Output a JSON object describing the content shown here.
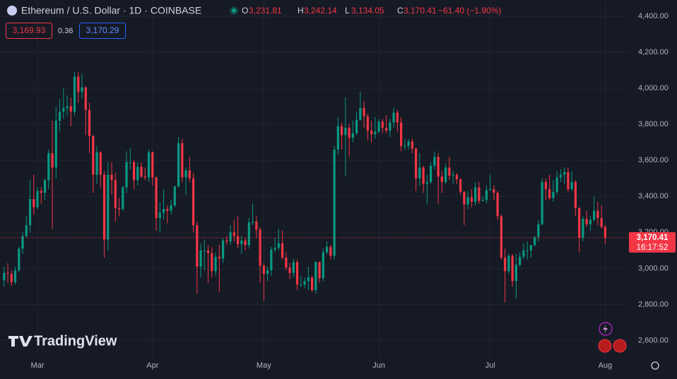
{
  "header": {
    "title": "Ethereum / U.S. Dollar · 1D · COINBASE",
    "o_label": "O",
    "open": "3,231.81",
    "h_label": "H",
    "high": "3,242.14",
    "l_label": "L",
    "low": "3,134.05",
    "c_label": "C",
    "close": "3,170.41",
    "change": "−61.40 (−1.90%)",
    "bid": "3,169.93",
    "spread": "0.36",
    "ask": "3,170.29",
    "countdown": "16:17:52",
    "brand": "TradingView"
  },
  "chart_data": {
    "type": "candlestick",
    "up_color": "#089981",
    "down_color": "#f23645",
    "grid": true,
    "open": [
      2935,
      2975,
      2970,
      2925,
      2990,
      3110,
      3180,
      3240,
      3385,
      3340,
      3430,
      3420,
      3490,
      3640,
      3560,
      3820,
      3870,
      3890,
      3900,
      3870,
      4065,
      3980,
      4005,
      3880,
      3735,
      3520,
      3645,
      3520,
      3160,
      3520,
      3490,
      3335,
      3330,
      3450,
      3590,
      3590,
      3490,
      3565,
      3510,
      3505,
      3645,
      3505,
      3280,
      3310,
      3330,
      3320,
      3350,
      3455,
      3695,
      3505,
      3545,
      3500,
      3240,
      3010,
      3100,
      3100,
      3085,
      2985,
      3065,
      3055,
      3155,
      3150,
      3200,
      3180,
      3135,
      3155,
      3130,
      3255,
      3260,
      3215,
      3015,
      2970,
      2990,
      3105,
      3115,
      3140,
      3060,
      3005,
      2975,
      3035,
      2910,
      2910,
      2930,
      2950,
      2880,
      3035,
      2945,
      3090,
      3120,
      3070,
      3660,
      3790,
      3740,
      3780,
      3725,
      3750,
      3825,
      3890,
      3845,
      3765,
      3745,
      3760,
      3815,
      3780,
      3765,
      3810,
      3865,
      3810,
      3680,
      3680,
      3705,
      3665,
      3500,
      3560,
      3470,
      3480,
      3570,
      3620,
      3510,
      3480,
      3560,
      3515,
      3520,
      3495,
      3425,
      3355,
      3395,
      3370,
      3450,
      3375,
      3380,
      3435,
      3440,
      3420,
      3290,
      3060,
      2985,
      3070,
      2930,
      3020,
      3065,
      3100,
      3100,
      3130,
      3175,
      3245,
      3480,
      3440,
      3390,
      3425,
      3505,
      3520,
      3535,
      3440,
      3480,
      3335,
      3170,
      3275,
      3245,
      3270,
      3320,
      3280,
      3231.81
    ],
    "high": [
      3010,
      3030,
      2990,
      3010,
      3120,
      3200,
      3290,
      3490,
      3520,
      3450,
      3450,
      3500,
      3660,
      3820,
      3900,
      3940,
      4000,
      3960,
      3950,
      4090,
      4090,
      4080,
      4010,
      3920,
      3740,
      3680,
      3650,
      3540,
      3590,
      3590,
      3530,
      3390,
      3460,
      3650,
      3670,
      3600,
      3590,
      3590,
      3560,
      3660,
      3650,
      3510,
      3370,
      3440,
      3350,
      3380,
      3460,
      3730,
      3720,
      3560,
      3620,
      3530,
      3260,
      3140,
      3160,
      3130,
      3120,
      3090,
      3130,
      3170,
      3180,
      3240,
      3270,
      3290,
      3180,
      3170,
      3280,
      3360,
      3290,
      3230,
      3030,
      3010,
      3120,
      3170,
      3220,
      3210,
      3090,
      3030,
      3055,
      3050,
      2960,
      2950,
      3010,
      2960,
      3040,
      3040,
      3110,
      3150,
      3130,
      3680,
      3840,
      3810,
      3950,
      3800,
      3820,
      3870,
      3980,
      3930,
      3860,
      3820,
      3840,
      3830,
      3830,
      3850,
      3830,
      3890,
      3880,
      3840,
      3720,
      3720,
      3720,
      3670,
      3640,
      3570,
      3520,
      3590,
      3650,
      3640,
      3540,
      3580,
      3620,
      3540,
      3530,
      3500,
      3430,
      3430,
      3440,
      3480,
      3480,
      3400,
      3460,
      3520,
      3460,
      3430,
      3300,
      3110,
      3080,
      3080,
      3080,
      3090,
      3140,
      3150,
      3130,
      3180,
      3270,
      3500,
      3500,
      3520,
      3490,
      3540,
      3550,
      3560,
      3560,
      3540,
      3490,
      3340,
      3290,
      3320,
      3290,
      3400,
      3370,
      3350,
      3242.14
    ],
    "low": [
      2900,
      2920,
      2905,
      2910,
      2980,
      3080,
      3170,
      3200,
      3300,
      3330,
      3360,
      3380,
      3440,
      3220,
      3500,
      3760,
      3830,
      3850,
      3790,
      3850,
      3920,
      3940,
      3740,
      3640,
      3420,
      3470,
      3450,
      3060,
      3100,
      3410,
      3260,
      3290,
      3320,
      3420,
      3550,
      3440,
      3460,
      3500,
      3490,
      3480,
      3460,
      3210,
      3200,
      3270,
      3250,
      3300,
      3340,
      3450,
      3480,
      3410,
      3480,
      3200,
      2860,
      2950,
      2990,
      2920,
      2950,
      2960,
      2870,
      3030,
      3130,
      3130,
      3150,
      3110,
      3080,
      3100,
      3110,
      3240,
      3170,
      2920,
      2820,
      2930,
      2960,
      3090,
      3100,
      3050,
      2990,
      2940,
      2950,
      2880,
      2900,
      2890,
      2880,
      2870,
      2860,
      2920,
      2930,
      3080,
      3050,
      3050,
      3630,
      3660,
      3510,
      3620,
      3700,
      3740,
      3820,
      3780,
      3710,
      3700,
      3720,
      3750,
      3750,
      3750,
      3730,
      3780,
      3760,
      3650,
      3660,
      3660,
      3640,
      3430,
      3460,
      3420,
      3360,
      3470,
      3550,
      3360,
      3420,
      3470,
      3490,
      3470,
      3470,
      3410,
      3240,
      3330,
      3340,
      3350,
      3360,
      3370,
      3360,
      3430,
      3380,
      3270,
      3050,
      2810,
      2970,
      2900,
      2830,
      3010,
      3050,
      3050,
      3060,
      3120,
      3150,
      3240,
      3380,
      3380,
      3370,
      3410,
      3480,
      3470,
      3420,
      3430,
      3290,
      3090,
      3150,
      3230,
      3210,
      3260,
      3240,
      3220,
      3134.05
    ],
    "close": [
      2975,
      2970,
      2925,
      2990,
      3110,
      3180,
      3240,
      3385,
      3340,
      3430,
      3420,
      3490,
      3640,
      3560,
      3820,
      3870,
      3890,
      3900,
      3870,
      4065,
      3980,
      4005,
      3880,
      3735,
      3520,
      3645,
      3520,
      3160,
      3520,
      3490,
      3335,
      3330,
      3450,
      3590,
      3590,
      3490,
      3565,
      3510,
      3505,
      3645,
      3505,
      3280,
      3310,
      3330,
      3320,
      3350,
      3455,
      3695,
      3505,
      3545,
      3500,
      3240,
      3010,
      3100,
      3100,
      3085,
      2985,
      3065,
      3055,
      3155,
      3150,
      3200,
      3180,
      3135,
      3155,
      3130,
      3255,
      3260,
      3215,
      3015,
      2970,
      2990,
      3105,
      3115,
      3140,
      3060,
      3005,
      2975,
      3035,
      2910,
      2910,
      2930,
      2950,
      2880,
      3035,
      2945,
      3090,
      3120,
      3070,
      3660,
      3790,
      3740,
      3780,
      3725,
      3750,
      3825,
      3890,
      3845,
      3765,
      3745,
      3760,
      3815,
      3780,
      3765,
      3810,
      3865,
      3810,
      3680,
      3680,
      3705,
      3665,
      3500,
      3560,
      3470,
      3480,
      3570,
      3620,
      3510,
      3480,
      3560,
      3515,
      3520,
      3495,
      3425,
      3355,
      3395,
      3370,
      3450,
      3375,
      3380,
      3435,
      3440,
      3420,
      3290,
      3060,
      2985,
      3070,
      2930,
      3020,
      3065,
      3100,
      3100,
      3130,
      3175,
      3245,
      3480,
      3440,
      3390,
      3425,
      3505,
      3520,
      3535,
      3440,
      3480,
      3335,
      3170,
      3275,
      3245,
      3270,
      3320,
      3280,
      3230,
      3170.41
    ],
    "xlim": [
      -1.1,
      168.4
    ],
    "xticks": [
      {
        "value": 9,
        "label": "Mar"
      },
      {
        "value": 40,
        "label": "Apr"
      },
      {
        "value": 70,
        "label": "May"
      },
      {
        "value": 101,
        "label": "Jun"
      },
      {
        "value": 131,
        "label": "Jul"
      },
      {
        "value": 162,
        "label": "Aug"
      }
    ],
    "ylim": [
      2500,
      4490
    ],
    "yticks": [
      {
        "value": 2600,
        "label": "2,600.00"
      },
      {
        "value": 2800,
        "label": "2,800.00"
      },
      {
        "value": 3000,
        "label": "3,000.00"
      },
      {
        "value": 3200,
        "label": "3,200.00"
      },
      {
        "value": 3400,
        "label": "3,400.00"
      },
      {
        "value": 3600,
        "label": "3,600.00"
      },
      {
        "value": 3800,
        "label": "3,800.00"
      },
      {
        "value": 4000,
        "label": "4,000.00"
      },
      {
        "value": 4200,
        "label": "4,200.00"
      },
      {
        "value": 4400,
        "label": "4,400.00"
      }
    ]
  }
}
